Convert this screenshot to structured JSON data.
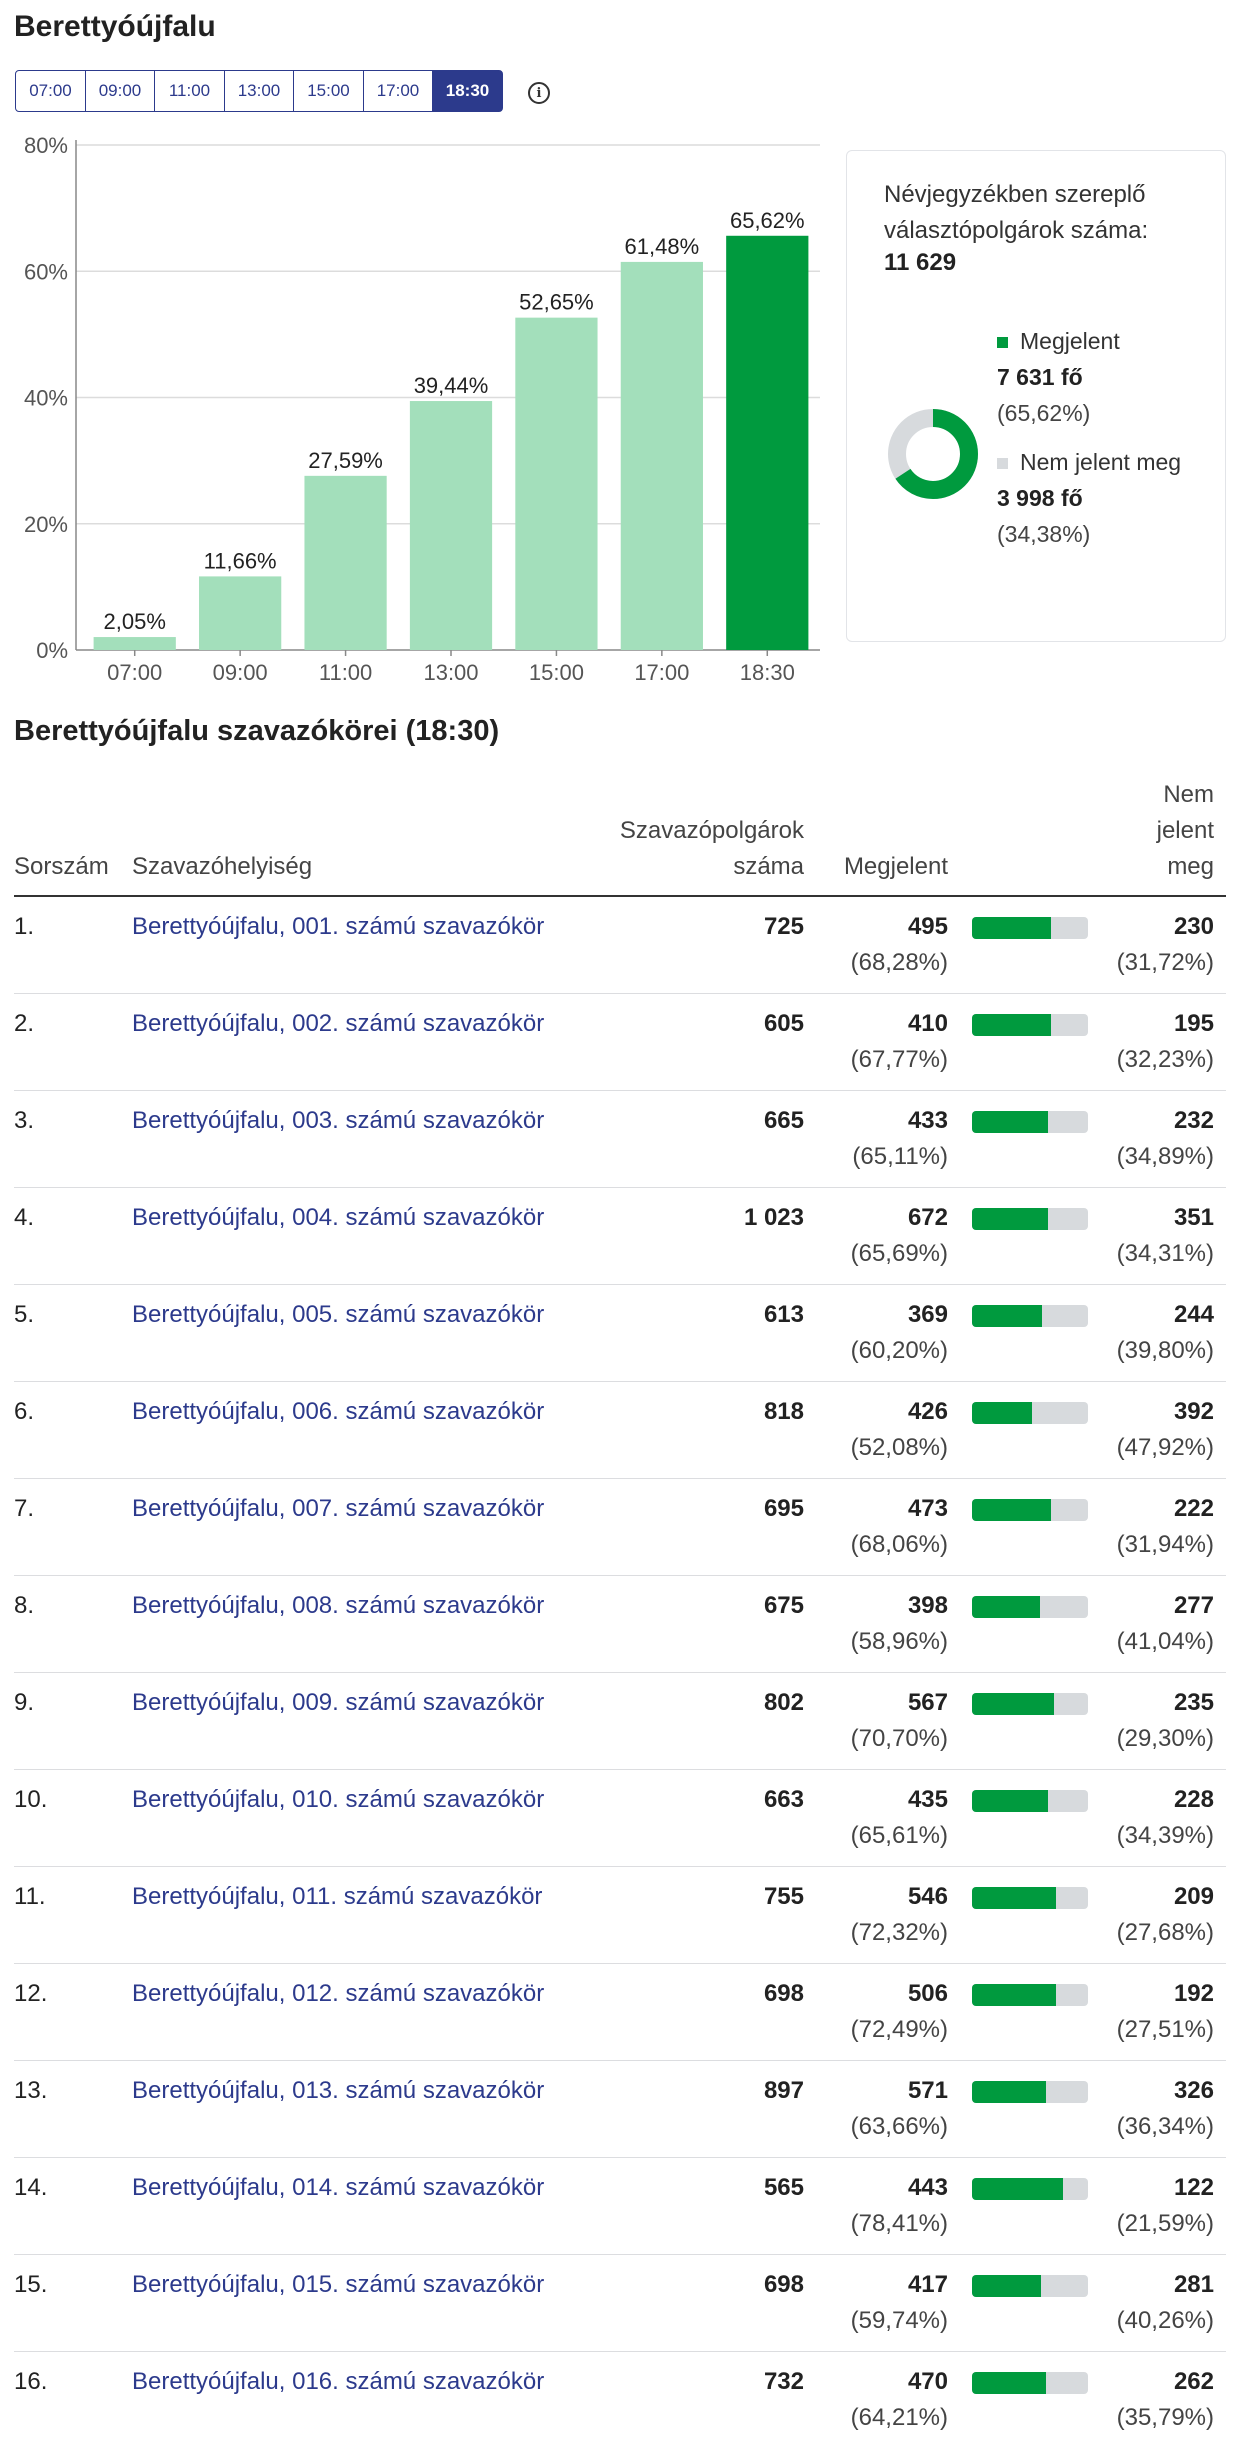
{
  "page": {
    "title": "Berettyóújfalu"
  },
  "time_tabs": {
    "items": [
      "07:00",
      "09:00",
      "11:00",
      "13:00",
      "15:00",
      "17:00",
      "18:30"
    ],
    "active": "18:30"
  },
  "info_icon": "info-icon",
  "colors": {
    "accent": "#2c3a8c",
    "bar_active": "#009a3e",
    "bar_past": "#a3dfbb",
    "neutral": "#d7dadd"
  },
  "chart_data": {
    "type": "bar",
    "categories": [
      "07:00",
      "09:00",
      "11:00",
      "13:00",
      "15:00",
      "17:00",
      "18:30"
    ],
    "values": [
      2.05,
      11.66,
      27.59,
      39.44,
      52.65,
      61.48,
      65.62
    ],
    "data_labels": [
      "2,05%",
      "11,66%",
      "27,59%",
      "39,44%",
      "52,65%",
      "61,48%",
      "65,62%"
    ],
    "y_ticks": [
      "0%",
      "20%",
      "40%",
      "60%",
      "80%"
    ],
    "ylim": [
      0,
      80
    ],
    "grid": true,
    "highlighted_category": "18:30"
  },
  "summary": {
    "heading": "Névjegyzékben szereplő választópolgárok száma:",
    "total": "11 629",
    "appeared": {
      "label": "Megjelent",
      "count": "7 631 fő",
      "pct": "(65,62%)",
      "value": 65.62
    },
    "absent": {
      "label": "Nem jelent meg",
      "count": "3 998 fő",
      "pct": "(34,38%)",
      "value": 34.38
    }
  },
  "section_title": "Berettyóújfalu szavazókörei (18:30)",
  "table": {
    "headers": {
      "no": "Sorszám",
      "name": "Szavazóhelyiség",
      "total": "Szavazópolgárok száma",
      "appeared": "Megjelent",
      "absent": "Nem jelent meg"
    },
    "rows": [
      {
        "no": "1.",
        "name": "Berettyóújfalu, 001. számú szavazókör",
        "total": "725",
        "appeared": "495",
        "appeared_pct": "(68,28%)",
        "ratio": 68.28,
        "absent": "230",
        "absent_pct": "(31,72%)"
      },
      {
        "no": "2.",
        "name": "Berettyóújfalu, 002. számú szavazókör",
        "total": "605",
        "appeared": "410",
        "appeared_pct": "(67,77%)",
        "ratio": 67.77,
        "absent": "195",
        "absent_pct": "(32,23%)"
      },
      {
        "no": "3.",
        "name": "Berettyóújfalu, 003. számú szavazókör",
        "total": "665",
        "appeared": "433",
        "appeared_pct": "(65,11%)",
        "ratio": 65.11,
        "absent": "232",
        "absent_pct": "(34,89%)"
      },
      {
        "no": "4.",
        "name": "Berettyóújfalu, 004. számú szavazókör",
        "total": "1 023",
        "appeared": "672",
        "appeared_pct": "(65,69%)",
        "ratio": 65.69,
        "absent": "351",
        "absent_pct": "(34,31%)"
      },
      {
        "no": "5.",
        "name": "Berettyóújfalu, 005. számú szavazókör",
        "total": "613",
        "appeared": "369",
        "appeared_pct": "(60,20%)",
        "ratio": 60.2,
        "absent": "244",
        "absent_pct": "(39,80%)"
      },
      {
        "no": "6.",
        "name": "Berettyóújfalu, 006. számú szavazókör",
        "total": "818",
        "appeared": "426",
        "appeared_pct": "(52,08%)",
        "ratio": 52.08,
        "absent": "392",
        "absent_pct": "(47,92%)"
      },
      {
        "no": "7.",
        "name": "Berettyóújfalu, 007. számú szavazókör",
        "total": "695",
        "appeared": "473",
        "appeared_pct": "(68,06%)",
        "ratio": 68.06,
        "absent": "222",
        "absent_pct": "(31,94%)"
      },
      {
        "no": "8.",
        "name": "Berettyóújfalu, 008. számú szavazókör",
        "total": "675",
        "appeared": "398",
        "appeared_pct": "(58,96%)",
        "ratio": 58.96,
        "absent": "277",
        "absent_pct": "(41,04%)"
      },
      {
        "no": "9.",
        "name": "Berettyóújfalu, 009. számú szavazókör",
        "total": "802",
        "appeared": "567",
        "appeared_pct": "(70,70%)",
        "ratio": 70.7,
        "absent": "235",
        "absent_pct": "(29,30%)"
      },
      {
        "no": "10.",
        "name": "Berettyóújfalu, 010. számú szavazókör",
        "total": "663",
        "appeared": "435",
        "appeared_pct": "(65,61%)",
        "ratio": 65.61,
        "absent": "228",
        "absent_pct": "(34,39%)"
      },
      {
        "no": "11.",
        "name": "Berettyóújfalu, 011. számú szavazókör",
        "total": "755",
        "appeared": "546",
        "appeared_pct": "(72,32%)",
        "ratio": 72.32,
        "absent": "209",
        "absent_pct": "(27,68%)"
      },
      {
        "no": "12.",
        "name": "Berettyóújfalu, 012. számú szavazókör",
        "total": "698",
        "appeared": "506",
        "appeared_pct": "(72,49%)",
        "ratio": 72.49,
        "absent": "192",
        "absent_pct": "(27,51%)"
      },
      {
        "no": "13.",
        "name": "Berettyóújfalu, 013. számú szavazókör",
        "total": "897",
        "appeared": "571",
        "appeared_pct": "(63,66%)",
        "ratio": 63.66,
        "absent": "326",
        "absent_pct": "(36,34%)"
      },
      {
        "no": "14.",
        "name": "Berettyóújfalu, 014. számú szavazókör",
        "total": "565",
        "appeared": "443",
        "appeared_pct": "(78,41%)",
        "ratio": 78.41,
        "absent": "122",
        "absent_pct": "(21,59%)"
      },
      {
        "no": "15.",
        "name": "Berettyóújfalu, 015. számú szavazókör",
        "total": "698",
        "appeared": "417",
        "appeared_pct": "(59,74%)",
        "ratio": 59.74,
        "absent": "281",
        "absent_pct": "(40,26%)"
      },
      {
        "no": "16.",
        "name": "Berettyóújfalu, 016. számú szavazókör",
        "total": "732",
        "appeared": "470",
        "appeared_pct": "(64,21%)",
        "ratio": 64.21,
        "absent": "262",
        "absent_pct": "(35,79%)"
      }
    ]
  }
}
